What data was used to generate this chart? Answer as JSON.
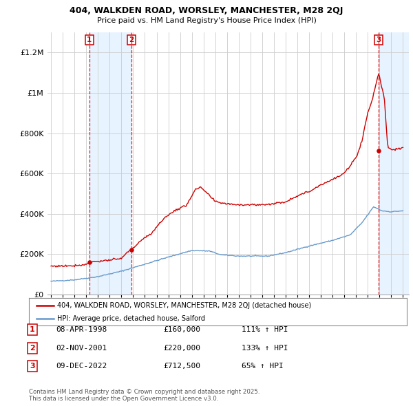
{
  "title_line1": "404, WALKDEN ROAD, WORSLEY, MANCHESTER, M28 2QJ",
  "title_line2": "Price paid vs. HM Land Registry's House Price Index (HPI)",
  "sale_dates": [
    "08-APR-1998",
    "02-NOV-2001",
    "09-DEC-2022"
  ],
  "sale_prices": [
    160000,
    220000,
    712500
  ],
  "sale_labels": [
    "1",
    "2",
    "3"
  ],
  "sale_hpi_pct": [
    "111% ↑ HPI",
    "133% ↑ HPI",
    "65% ↑ HPI"
  ],
  "legend_red": "404, WALKDEN ROAD, WORSLEY, MANCHESTER, M28 2QJ (detached house)",
  "legend_blue": "HPI: Average price, detached house, Salford",
  "footnote": "Contains HM Land Registry data © Crown copyright and database right 2025.\nThis data is licensed under the Open Government Licence v3.0.",
  "red_color": "#cc0000",
  "blue_color": "#6699cc",
  "shade_color": "#ddeeff",
  "bg_color": "#ffffff",
  "grid_color": "#cccccc",
  "ylim": [
    0,
    1300000
  ],
  "xlim_left": 1994.7,
  "xlim_right": 2025.5,
  "yticks": [
    0,
    200000,
    400000,
    600000,
    800000,
    1000000,
    1200000
  ],
  "sale_year_nums": [
    1998.27,
    2001.84,
    2022.93
  ]
}
